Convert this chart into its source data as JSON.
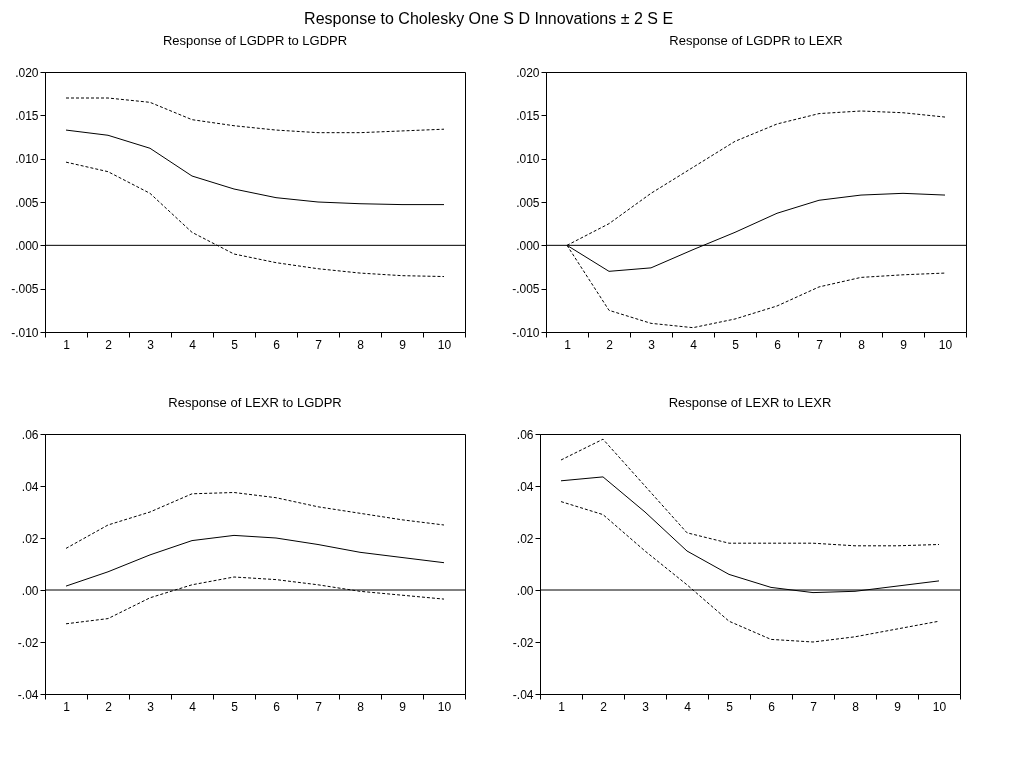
{
  "chart_data": [
    {
      "type": "line",
      "title": "Response of LGDPR to LGDPR",
      "annotations": [
        "Response to Cholesky One S D  Innovations ± 2 S E"
      ],
      "categories": [
        "1",
        "2",
        "3",
        "4",
        "5",
        "6",
        "7",
        "8",
        "9",
        "10"
      ],
      "ylim": [
        -0.01,
        0.02
      ],
      "yticks": [
        {
          "value": -0.01,
          "label": "-.010"
        },
        {
          "value": -0.005,
          "label": "-.005"
        },
        {
          "value": 0,
          "label": ".000"
        },
        {
          "value": 0.005,
          "label": ".005"
        },
        {
          "value": 0.01,
          "label": ".010"
        },
        {
          "value": 0.015,
          "label": ".015"
        },
        {
          "value": 0.02,
          "label": ".020"
        }
      ],
      "ref_lines": [
        {
          "axis": "y",
          "value": 0,
          "color": "#000000"
        }
      ],
      "series": [
        {
          "color": "#000000",
          "line_style": "solid",
          "values": [
            0.0133,
            0.0127,
            0.0112,
            0.008,
            0.0065,
            0.0055,
            0.005,
            0.0048,
            0.0047,
            0.0047
          ]
        },
        {
          "color": "#000000",
          "line_style": "dashed",
          "values": [
            0.017,
            0.017,
            0.0165,
            0.0145,
            0.0138,
            0.0133,
            0.013,
            0.013,
            0.0132,
            0.0134
          ]
        },
        {
          "color": "#000000",
          "line_style": "dashed",
          "values": [
            0.0096,
            0.0085,
            0.006,
            0.0015,
            -0.001,
            -0.002,
            -0.0027,
            -0.0032,
            -0.0035,
            -0.0036
          ]
        }
      ]
    },
    {
      "type": "line",
      "title": "Response of LGDPR to LEXR",
      "categories": [
        "1",
        "2",
        "3",
        "4",
        "5",
        "6",
        "7",
        "8",
        "9",
        "10"
      ],
      "ylim": [
        -0.01,
        0.02
      ],
      "yticks": [
        {
          "value": -0.01,
          "label": "-.010"
        },
        {
          "value": -0.005,
          "label": "-.005"
        },
        {
          "value": 0,
          "label": ".000"
        },
        {
          "value": 0.005,
          "label": ".005"
        },
        {
          "value": 0.01,
          "label": ".010"
        },
        {
          "value": 0.015,
          "label": ".015"
        },
        {
          "value": 0.02,
          "label": ".020"
        }
      ],
      "ref_lines": [
        {
          "axis": "y",
          "value": 0,
          "color": "#000000"
        }
      ],
      "series": [
        {
          "color": "#000000",
          "line_style": "solid",
          "values": [
            0,
            -0.003,
            -0.0026,
            -0.0005,
            0.0015,
            0.0037,
            0.0052,
            0.0058,
            0.006,
            0.0058
          ]
        },
        {
          "color": "#000000",
          "line_style": "dashed",
          "values": [
            0,
            0.0025,
            0.006,
            0.009,
            0.012,
            0.014,
            0.0152,
            0.0155,
            0.0153,
            0.0148
          ]
        },
        {
          "color": "#000000",
          "line_style": "dashed",
          "values": [
            0,
            -0.0075,
            -0.009,
            -0.0095,
            -0.0085,
            -0.007,
            -0.0048,
            -0.0037,
            -0.0034,
            -0.0032
          ]
        }
      ]
    },
    {
      "type": "line",
      "title": "Response of LEXR to LGDPR",
      "categories": [
        "1",
        "2",
        "3",
        "4",
        "5",
        "6",
        "7",
        "8",
        "9",
        "10"
      ],
      "ylim": [
        -0.04,
        0.06
      ],
      "yticks": [
        {
          "value": -0.04,
          "label": "-.04"
        },
        {
          "value": -0.02,
          "label": "-.02"
        },
        {
          "value": 0,
          "label": ".00"
        },
        {
          "value": 0.02,
          "label": ".02"
        },
        {
          "value": 0.04,
          "label": ".04"
        },
        {
          "value": 0.06,
          "label": ".06"
        }
      ],
      "ref_lines": [
        {
          "axis": "y",
          "value": 0,
          "color": "#000000"
        }
      ],
      "series": [
        {
          "color": "#000000",
          "line_style": "solid",
          "values": [
            0.0015,
            0.007,
            0.0135,
            0.019,
            0.021,
            0.02,
            0.0175,
            0.0145,
            0.0125,
            0.0105
          ]
        },
        {
          "color": "#000000",
          "line_style": "dashed",
          "values": [
            0.016,
            0.025,
            0.03,
            0.037,
            0.0375,
            0.0355,
            0.032,
            0.0295,
            0.027,
            0.025
          ]
        },
        {
          "color": "#000000",
          "line_style": "dashed",
          "values": [
            -0.013,
            -0.011,
            -0.003,
            0.002,
            0.005,
            0.004,
            0.002,
            -0.0005,
            -0.002,
            -0.0035
          ]
        }
      ]
    },
    {
      "type": "line",
      "title": "Response of LEXR to LEXR",
      "categories": [
        "1",
        "2",
        "3",
        "4",
        "5",
        "6",
        "7",
        "8",
        "9",
        "10"
      ],
      "ylim": [
        -0.04,
        0.06
      ],
      "yticks": [
        {
          "value": -0.04,
          "label": "-.04"
        },
        {
          "value": -0.02,
          "label": "-.02"
        },
        {
          "value": 0,
          "label": ".00"
        },
        {
          "value": 0.02,
          "label": ".02"
        },
        {
          "value": 0.04,
          "label": ".04"
        },
        {
          "value": 0.06,
          "label": ".06"
        }
      ],
      "ref_lines": [
        {
          "axis": "y",
          "value": 0,
          "color": "#000000"
        }
      ],
      "series": [
        {
          "color": "#000000",
          "line_style": "solid",
          "values": [
            0.042,
            0.0435,
            0.03,
            0.015,
            0.006,
            0.001,
            -0.001,
            -0.0005,
            0.0015,
            0.0035
          ]
        },
        {
          "color": "#000000",
          "line_style": "dashed",
          "values": [
            0.05,
            0.058,
            0.04,
            0.022,
            0.018,
            0.018,
            0.018,
            0.017,
            0.017,
            0.0175
          ]
        },
        {
          "color": "#000000",
          "line_style": "dashed",
          "values": [
            0.034,
            0.029,
            0.015,
            0.002,
            -0.012,
            -0.019,
            -0.02,
            -0.018,
            -0.015,
            -0.012
          ]
        }
      ]
    }
  ]
}
